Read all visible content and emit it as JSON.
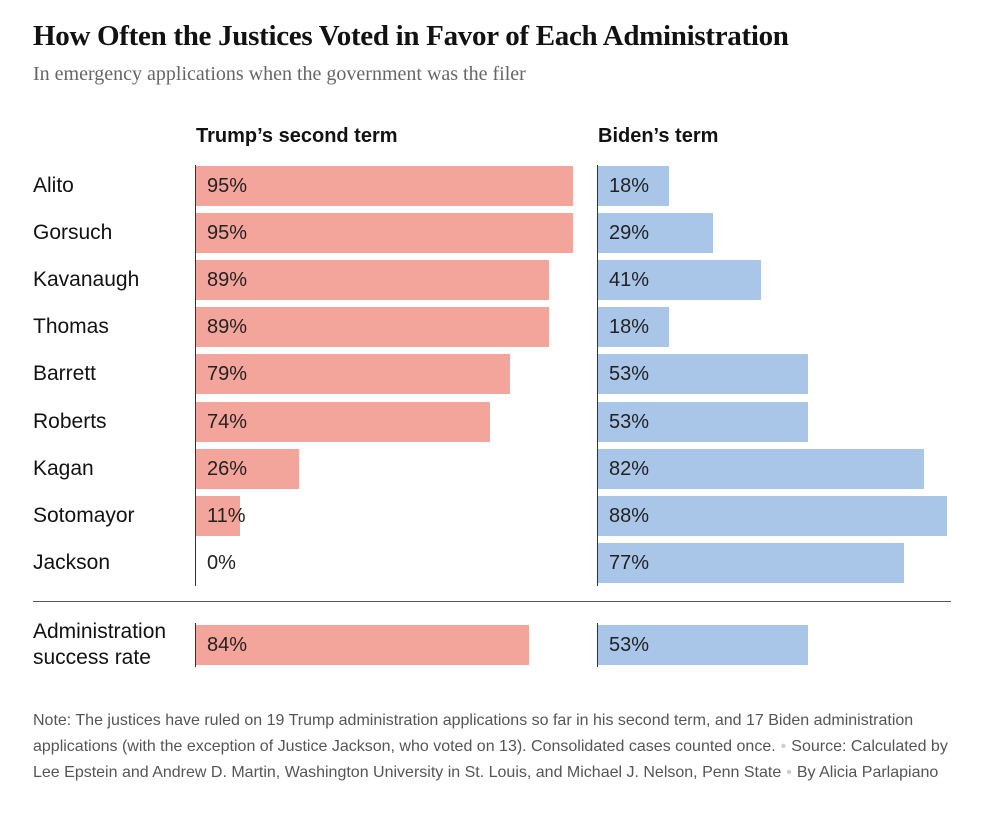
{
  "chart_data": {
    "type": "bar",
    "title": "How Often the Justices Voted in Favor of Each Administration",
    "subtitle": "In emergency applications when the government was the filer",
    "categories": [
      "Alito",
      "Gorsuch",
      "Kavanaugh",
      "Thomas",
      "Barrett",
      "Roberts",
      "Kagan",
      "Sotomayor",
      "Jackson",
      "Administration success rate"
    ],
    "series": [
      {
        "name": "Trump’s second term",
        "color": "#f4a59b",
        "values": [
          95,
          95,
          89,
          89,
          79,
          74,
          26,
          11,
          0,
          84
        ],
        "value_labels": [
          "95%",
          "95%",
          "89%",
          "89%",
          "79%",
          "74%",
          "26%",
          "11%",
          "0%",
          "84%"
        ]
      },
      {
        "name": "Biden’s term",
        "color": "#a9c6e8",
        "values": [
          18,
          29,
          41,
          18,
          53,
          53,
          82,
          88,
          77,
          53
        ],
        "value_labels": [
          "18%",
          "29%",
          "41%",
          "18%",
          "53%",
          "53%",
          "82%",
          "88%",
          "77%",
          "53%"
        ]
      }
    ],
    "note": "Note: The justices have ruled on 19 Trump administration applications so far in his second term, and 17 Biden administration applications (with the exception of Justice Jackson, who voted on 13). Consolidated cases counted once.",
    "source": "Source: Calculated by Lee Epstein and Andrew D. Martin, Washington University in St. Louis, and Michael J. Nelson, Penn State",
    "byline": "By Alicia Parlapiano"
  }
}
